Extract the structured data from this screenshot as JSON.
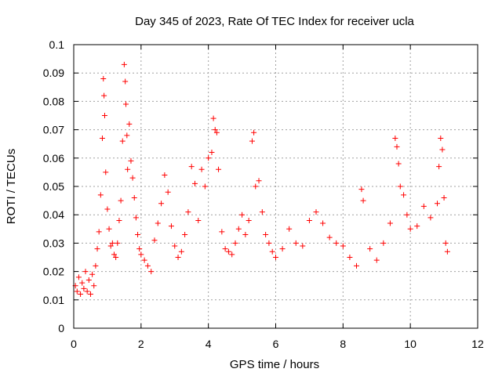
{
  "chart_data": {
    "type": "scatter",
    "title": "Day 345 of 2023, Rate Of TEC Index for receiver ucla",
    "xlabel": "GPS time / hours",
    "ylabel": "ROTI / TECUs",
    "xlim": [
      0,
      12
    ],
    "ylim": [
      0,
      0.1
    ],
    "xticks": [
      "0",
      "2",
      "4",
      "6",
      "8",
      "10",
      "12"
    ],
    "yticks": [
      "0",
      "0.01",
      "0.02",
      "0.03",
      "0.04",
      "0.05",
      "0.06",
      "0.07",
      "0.08",
      "0.09",
      "0.1"
    ],
    "grid": true,
    "marker": "plus",
    "color": "#ff0000",
    "series": [
      {
        "x": [
          0.05,
          0.1,
          0.15,
          0.2,
          0.25,
          0.3,
          0.35,
          0.4,
          0.45,
          0.5,
          0.55,
          0.6,
          0.65,
          0.7,
          0.75,
          0.8,
          0.85,
          0.88,
          0.9,
          0.92,
          0.95,
          1.0,
          1.05,
          1.1,
          1.15,
          1.2,
          1.25,
          1.3,
          1.35,
          1.4,
          1.45,
          1.5,
          1.53,
          1.55,
          1.58,
          1.6,
          1.65,
          1.7,
          1.75,
          1.8,
          1.85,
          1.9,
          1.95,
          2.0,
          2.1,
          2.2,
          2.3,
          2.4,
          2.5,
          2.6,
          2.7,
          2.8,
          2.9,
          3.0,
          3.1,
          3.2,
          3.3,
          3.4,
          3.5,
          3.6,
          3.7,
          3.8,
          3.9,
          4.0,
          4.1,
          4.15,
          4.2,
          4.25,
          4.3,
          4.4,
          4.5,
          4.6,
          4.7,
          4.8,
          4.9,
          5.0,
          5.1,
          5.2,
          5.3,
          5.35,
          5.4,
          5.5,
          5.6,
          5.7,
          5.8,
          5.9,
          6.0,
          6.2,
          6.4,
          6.6,
          6.8,
          7.0,
          7.2,
          7.4,
          7.6,
          7.8,
          8.0,
          8.2,
          8.4,
          8.55,
          8.6,
          8.8,
          9.0,
          9.2,
          9.4,
          9.55,
          9.6,
          9.65,
          9.7,
          9.8,
          9.9,
          10.0,
          10.2,
          10.4,
          10.6,
          10.8,
          10.85,
          10.9,
          10.95,
          11.0,
          11.05,
          11.1
        ],
        "y": [
          0.015,
          0.013,
          0.018,
          0.012,
          0.016,
          0.014,
          0.02,
          0.013,
          0.017,
          0.012,
          0.019,
          0.015,
          0.022,
          0.028,
          0.034,
          0.047,
          0.067,
          0.088,
          0.082,
          0.075,
          0.055,
          0.042,
          0.035,
          0.029,
          0.03,
          0.026,
          0.025,
          0.03,
          0.038,
          0.045,
          0.066,
          0.093,
          0.087,
          0.079,
          0.068,
          0.056,
          0.072,
          0.059,
          0.053,
          0.046,
          0.039,
          0.033,
          0.028,
          0.026,
          0.024,
          0.022,
          0.02,
          0.031,
          0.037,
          0.044,
          0.054,
          0.048,
          0.036,
          0.029,
          0.025,
          0.027,
          0.033,
          0.041,
          0.057,
          0.051,
          0.038,
          0.056,
          0.05,
          0.06,
          0.062,
          0.074,
          0.07,
          0.069,
          0.056,
          0.034,
          0.028,
          0.027,
          0.026,
          0.03,
          0.035,
          0.04,
          0.033,
          0.038,
          0.066,
          0.069,
          0.05,
          0.052,
          0.041,
          0.033,
          0.03,
          0.027,
          0.025,
          0.028,
          0.035,
          0.03,
          0.029,
          0.038,
          0.041,
          0.037,
          0.032,
          0.03,
          0.029,
          0.025,
          0.022,
          0.049,
          0.045,
          0.028,
          0.024,
          0.03,
          0.037,
          0.067,
          0.064,
          0.058,
          0.05,
          0.047,
          0.04,
          0.035,
          0.036,
          0.043,
          0.039,
          0.044,
          0.057,
          0.067,
          0.063,
          0.046,
          0.03,
          0.027
        ]
      }
    ]
  }
}
